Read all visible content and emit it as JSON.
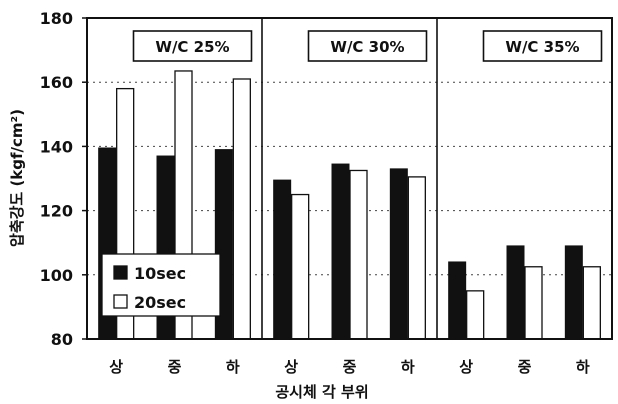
{
  "chart_data": {
    "type": "bar",
    "panels": [
      {
        "title": "W/C 25%",
        "categories": [
          "상",
          "중",
          "하"
        ],
        "values_10sec": [
          139.5,
          137,
          139
        ],
        "values_20sec": [
          158,
          163.5,
          161
        ]
      },
      {
        "title": "W/C 30%",
        "categories": [
          "상",
          "중",
          "하"
        ],
        "values_10sec": [
          129.5,
          134.5,
          133
        ],
        "values_20sec": [
          125,
          132.5,
          130.5
        ]
      },
      {
        "title": "W/C 35%",
        "categories": [
          "상",
          "중",
          "하"
        ],
        "values_10sec": [
          104,
          109,
          109
        ],
        "values_20sec": [
          95,
          102.5,
          102.5
        ]
      }
    ],
    "series": [
      {
        "name": "10sec",
        "color": "#111111"
      },
      {
        "name": "20sec",
        "color": "#ffffff"
      }
    ],
    "xlabel": "공시체 각 부위",
    "ylabel": "압축강도 (kgf/cm²)",
    "ylim": [
      80,
      180
    ],
    "yticks": [
      "80",
      "100",
      "120",
      "140",
      "160",
      "180"
    ],
    "grid": true,
    "legend_position": "bottom-left"
  }
}
